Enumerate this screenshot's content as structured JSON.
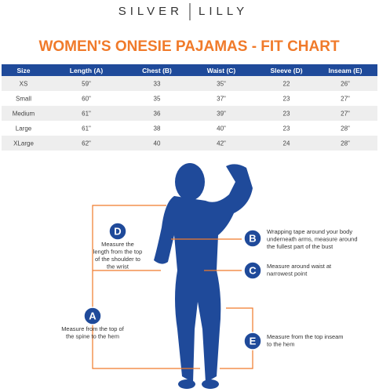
{
  "brand": {
    "left": "SILVER",
    "right": "LILLY"
  },
  "title": "WOMEN'S ONESIE PAJAMAS - FIT CHART",
  "table": {
    "header": [
      "Size",
      "Length (A)",
      "Chest (B)",
      "Waist (C)",
      "Sleeve (D)",
      "Inseam (E)"
    ],
    "rows": [
      [
        "XS",
        "59\"",
        "33",
        "35\"",
        "22",
        "26\""
      ],
      [
        "Small",
        "60\"",
        "35",
        "37\"",
        "23",
        "27\""
      ],
      [
        "Medium",
        "61\"",
        "36",
        "39\"",
        "23",
        "27\""
      ],
      [
        "Large",
        "61\"",
        "38",
        "40\"",
        "23",
        "28\""
      ],
      [
        "XLarge",
        "62\"",
        "40",
        "42\"",
        "24",
        "28\""
      ]
    ]
  },
  "callouts": [
    {
      "letter": "D",
      "lines": [
        "Measure the",
        "length from the top",
        "of the shoulder to",
        "the wrist"
      ]
    },
    {
      "letter": "B",
      "lines": [
        "Wrapping tape around your body",
        "underneath arms, measure around",
        "the fullest part of the bust"
      ]
    },
    {
      "letter": "C",
      "lines": [
        "Measure around waist at",
        "narrowest point"
      ]
    },
    {
      "letter": "A",
      "lines": [
        "Measure from the top of",
        "the spine to the hem"
      ]
    },
    {
      "letter": "E",
      "lines": [
        "Measure from the top inseam",
        "to the hem"
      ]
    }
  ]
}
